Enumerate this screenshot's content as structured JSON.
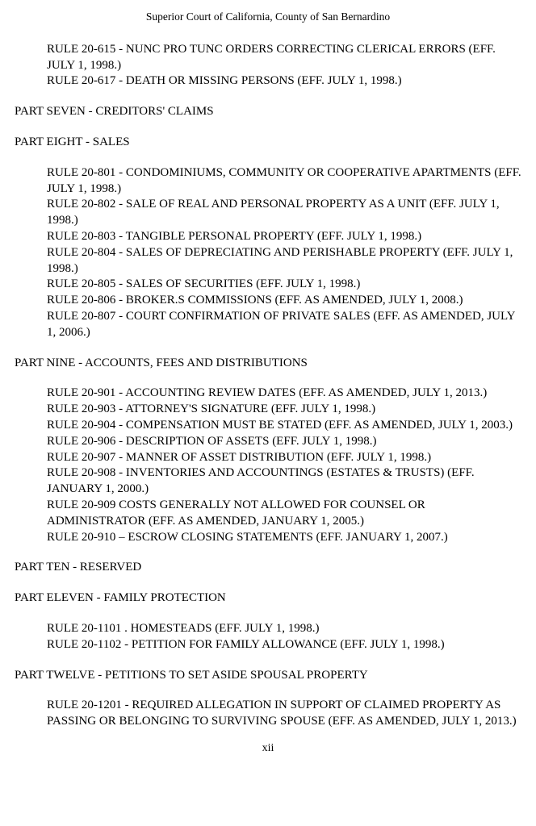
{
  "header": "Superior Court of California, County of San Bernardino",
  "top_rules": [
    "RULE 20-615 - NUNC PRO TUNC ORDERS CORRECTING CLERICAL ERRORS (EFF. JULY 1, 1998.)",
    "RULE 20-617 - DEATH OR MISSING PERSONS (EFF. JULY 1, 1998.)"
  ],
  "sections": [
    {
      "heading": "PART SEVEN - CREDITORS' CLAIMS",
      "rules": []
    },
    {
      "heading": "PART EIGHT - SALES",
      "rules": [
        "RULE 20-801 - CONDOMINIUMS, COMMUNITY OR COOPERATIVE APARTMENTS (EFF. JULY 1, 1998.)",
        "RULE 20-802 - SALE OF REAL AND PERSONAL PROPERTY AS A UNIT (EFF. JULY 1, 1998.)",
        "RULE 20-803 - TANGIBLE PERSONAL PROPERTY (EFF. JULY 1, 1998.)",
        "RULE 20-804 - SALES OF DEPRECIATING AND PERISHABLE PROPERTY (EFF. JULY 1, 1998.)",
        "RULE 20-805 - SALES OF SECURITIES (EFF. JULY 1, 1998.)",
        "RULE 20-806 - BROKER.S COMMISSIONS (EFF. AS AMENDED, JULY 1, 2008.)",
        "RULE 20-807 - COURT CONFIRMATION OF PRIVATE SALES (EFF. AS AMENDED, JULY 1, 2006.)"
      ]
    },
    {
      "heading": "PART NINE - ACCOUNTS, FEES AND DISTRIBUTIONS",
      "rules": [
        "RULE 20-901 - ACCOUNTING REVIEW DATES (EFF. AS AMENDED, JULY 1, 2013.)",
        "RULE 20-903 - ATTORNEY'S SIGNATURE (EFF. JULY 1, 1998.)",
        "RULE 20-904 - COMPENSATION MUST BE STATED (EFF. AS AMENDED, JULY 1, 2003.)",
        "RULE 20-906 - DESCRIPTION OF ASSETS (EFF. JULY 1, 1998.)",
        "RULE 20-907 - MANNER OF ASSET DISTRIBUTION (EFF. JULY 1, 1998.)",
        "RULE 20-908 - INVENTORIES AND ACCOUNTINGS (ESTATES & TRUSTS) (EFF. JANUARY 1, 2000.)",
        "RULE 20-909 COSTS GENERALLY NOT ALLOWED FOR COUNSEL OR ADMINISTRATOR (EFF. AS AMENDED, JANUARY 1, 2005.)",
        "RULE 20-910 – ESCROW CLOSING STATEMENTS (EFF. JANUARY 1, 2007.)"
      ]
    },
    {
      "heading": "PART TEN - RESERVED",
      "rules": []
    },
    {
      "heading": "PART ELEVEN - FAMILY PROTECTION",
      "rules": [
        "RULE 20-1101 . HOMESTEADS (EFF. JULY 1, 1998.)",
        "RULE 20-1102 - PETITION FOR FAMILY ALLOWANCE (EFF. JULY 1, 1998.)"
      ]
    },
    {
      "heading": "PART TWELVE - PETITIONS TO SET ASIDE SPOUSAL PROPERTY",
      "rules": [
        "RULE 20-1201 - REQUIRED ALLEGATION IN SUPPORT OF CLAIMED PROPERTY AS PASSING OR BELONGING TO SURVIVING SPOUSE (EFF. AS AMENDED, JULY 1, 2013.)"
      ]
    }
  ],
  "footer": "xii"
}
